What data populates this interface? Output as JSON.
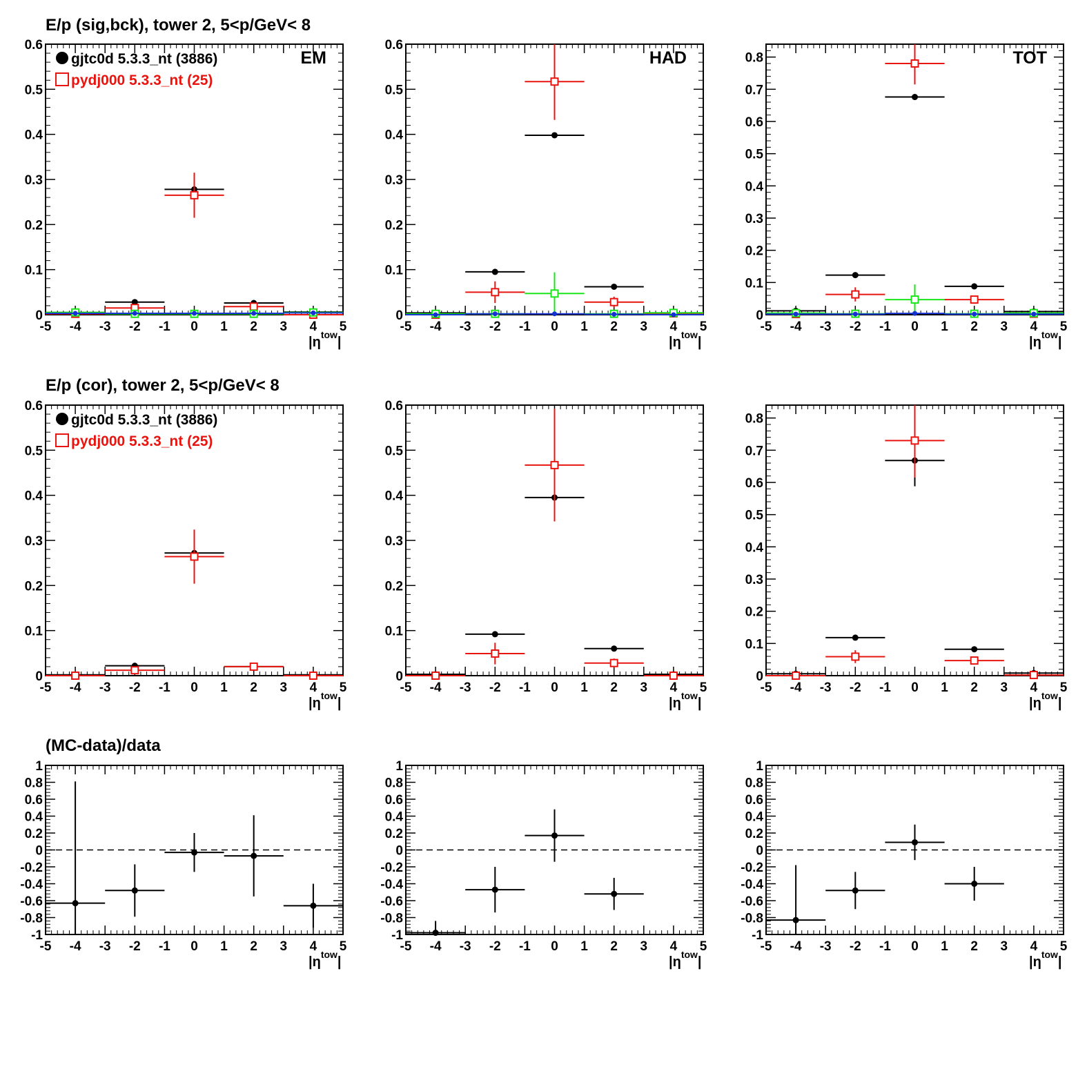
{
  "row_titles": [
    "E/p (sig,bck), tower 2,  5<p/GeV< 8",
    "E/p (cor), tower 2,  5<p/GeV< 8",
    "(MC-data)/data"
  ],
  "legend": {
    "data_label": "gjtc0d 5.3.3_nt (3886)",
    "mc_label": "pydj000 5.3.3_nt (25)"
  },
  "colors": {
    "data": "#000000",
    "mc": "#e8140f",
    "green": "#19e619",
    "blue": "#1432d2"
  },
  "xaxis": {
    "title_main": "|η",
    "title_sup": "tow",
    "title_end": "|",
    "ticks": [
      "-5",
      "-4",
      "-3",
      "-2",
      "-1",
      "0",
      "1",
      "2",
      "3",
      "4",
      "5"
    ]
  },
  "chart_data": [
    {
      "type": "scatter",
      "panel_label": "EM",
      "xlim": [
        -5,
        5
      ],
      "ylim": [
        0,
        0.6
      ],
      "yticks": [
        0,
        0.1,
        0.2,
        0.3,
        0.4,
        0.5,
        0.6
      ],
      "ytick_labels": [
        "0",
        "0.1",
        "0.2",
        "0.3",
        "0.4",
        "0.5",
        "0.6"
      ],
      "legend": true,
      "series": [
        {
          "name": "gjtc0d 5.3.3_nt (3886)",
          "color": "data",
          "marker": "dot",
          "x": [
            -4,
            -2,
            0,
            2,
            4
          ],
          "y": [
            0.005,
            0.028,
            0.278,
            0.026,
            0.006
          ],
          "yerr": [
            0,
            0,
            0,
            0,
            0
          ]
        },
        {
          "name": "pydj000 5.3.3_nt (25)",
          "color": "mc",
          "marker": "square",
          "x": [
            -4,
            -2,
            0,
            2,
            4
          ],
          "y": [
            0.002,
            0.015,
            0.265,
            0.018,
            0.0
          ],
          "yerr": [
            0,
            0.005,
            0.05,
            0.004,
            0
          ]
        },
        {
          "color": "green",
          "marker": "square",
          "x": [
            -4,
            -2,
            0,
            2,
            4
          ],
          "y": [
            0.005,
            0.002,
            0.002,
            0.002,
            0.005
          ],
          "yerr": [
            0,
            0,
            0,
            0,
            0
          ]
        },
        {
          "color": "blue",
          "marker": "dot",
          "x": [
            -4,
            -2,
            0,
            2,
            4
          ],
          "y": [
            0.003,
            0.003,
            0.003,
            0.003,
            0.004
          ],
          "yerr": [
            0,
            0,
            0,
            0,
            0
          ]
        }
      ]
    },
    {
      "type": "scatter",
      "panel_label": "HAD",
      "xlim": [
        -5,
        5
      ],
      "ylim": [
        0,
        0.6
      ],
      "yticks": [
        0,
        0.1,
        0.2,
        0.3,
        0.4,
        0.5,
        0.6
      ],
      "ytick_labels": [
        "0",
        "0.1",
        "0.2",
        "0.3",
        "0.4",
        "0.5",
        "0.6"
      ],
      "series": [
        {
          "color": "data",
          "marker": "dot",
          "x": [
            -4,
            -2,
            0,
            2,
            4
          ],
          "y": [
            0.004,
            0.095,
            0.398,
            0.062,
            0.004
          ],
          "yerr": [
            0,
            0,
            0,
            0,
            0
          ]
        },
        {
          "color": "mc",
          "marker": "square",
          "x": [
            -4,
            -2,
            0,
            2,
            4
          ],
          "y": [
            0.0,
            0.05,
            0.517,
            0.028,
            0.003
          ],
          "yerr": [
            0,
            0.024,
            0.085,
            0.012,
            0
          ]
        },
        {
          "color": "green",
          "marker": "square",
          "x": [
            -4,
            -2,
            0,
            2,
            4
          ],
          "y": [
            0.002,
            0.002,
            0.047,
            0.002,
            0.004
          ],
          "yerr": [
            0,
            0,
            0.047,
            0,
            0
          ]
        },
        {
          "color": "blue",
          "marker": "dot",
          "x": [
            -4,
            -2,
            0,
            2,
            4
          ],
          "y": [
            0.0,
            0.002,
            0.002,
            0.001,
            0.0
          ],
          "yerr": [
            0,
            0,
            0,
            0,
            0
          ]
        }
      ]
    },
    {
      "type": "scatter",
      "panel_label": "TOT",
      "xlim": [
        -5,
        5
      ],
      "ylim": [
        0,
        0.84
      ],
      "yticks": [
        0,
        0.1,
        0.2,
        0.3,
        0.4,
        0.5,
        0.6,
        0.7,
        0.8
      ],
      "ytick_labels": [
        "0",
        "0.1",
        "0.2",
        "0.3",
        "0.4",
        "0.5",
        "0.6",
        "0.7",
        "0.8"
      ],
      "series": [
        {
          "color": "data",
          "marker": "dot",
          "x": [
            -4,
            -2,
            0,
            2,
            4
          ],
          "y": [
            0.012,
            0.123,
            0.676,
            0.088,
            0.01
          ],
          "yerr": [
            0,
            0,
            0,
            0,
            0
          ]
        },
        {
          "color": "mc",
          "marker": "square",
          "x": [
            -4,
            -2,
            0,
            2,
            4
          ],
          "y": [
            0.002,
            0.063,
            0.78,
            0.047,
            0.003
          ],
          "yerr": [
            0,
            0.022,
            0.065,
            0.01,
            0
          ]
        },
        {
          "color": "green",
          "marker": "square",
          "x": [
            -4,
            -2,
            0,
            2,
            4
          ],
          "y": [
            0.005,
            0.003,
            0.047,
            0.003,
            0.005
          ],
          "yerr": [
            0,
            0,
            0.047,
            0,
            0
          ]
        },
        {
          "color": "blue",
          "marker": "dot",
          "x": [
            -4,
            -2,
            0,
            2,
            4
          ],
          "y": [
            0.002,
            0.002,
            0.004,
            0.002,
            0.002
          ],
          "yerr": [
            0,
            0,
            0,
            0,
            0
          ]
        }
      ]
    },
    {
      "type": "scatter",
      "xlim": [
        -5,
        5
      ],
      "ylim": [
        0,
        0.6
      ],
      "yticks": [
        0,
        0.1,
        0.2,
        0.3,
        0.4,
        0.5,
        0.6
      ],
      "ytick_labels": [
        "0",
        "0.1",
        "0.2",
        "0.3",
        "0.4",
        "0.5",
        "0.6"
      ],
      "legend": true,
      "series": [
        {
          "name": "gjtc0d 5.3.3_nt (3886)",
          "color": "data",
          "marker": "dot",
          "x": [
            -4,
            -2,
            0,
            2,
            4
          ],
          "y": [
            0.002,
            0.022,
            0.272,
            0.02,
            0.002
          ],
          "yerr": [
            0,
            0,
            0,
            0,
            0
          ]
        },
        {
          "name": "pydj000 5.3.3_nt (25)",
          "color": "mc",
          "marker": "square",
          "x": [
            -4,
            -2,
            0,
            2,
            4
          ],
          "y": [
            0.0,
            0.012,
            0.264,
            0.02,
            0.0
          ],
          "yerr": [
            0,
            0.005,
            0.06,
            0.004,
            0
          ]
        }
      ]
    },
    {
      "type": "scatter",
      "xlim": [
        -5,
        5
      ],
      "ylim": [
        0,
        0.6
      ],
      "yticks": [
        0,
        0.1,
        0.2,
        0.3,
        0.4,
        0.5,
        0.6
      ],
      "ytick_labels": [
        "0",
        "0.1",
        "0.2",
        "0.3",
        "0.4",
        "0.5",
        "0.6"
      ],
      "series": [
        {
          "color": "data",
          "marker": "dot",
          "x": [
            -4,
            -2,
            0,
            2,
            4
          ],
          "y": [
            0.003,
            0.092,
            0.395,
            0.06,
            0.003
          ],
          "yerr": [
            0,
            0,
            0.05,
            0,
            0
          ]
        },
        {
          "color": "mc",
          "marker": "square",
          "x": [
            -4,
            -2,
            0,
            2,
            4
          ],
          "y": [
            0.0,
            0.049,
            0.467,
            0.028,
            0.0
          ],
          "yerr": [
            0,
            0.024,
            0.125,
            0.01,
            0
          ]
        }
      ]
    },
    {
      "type": "scatter",
      "xlim": [
        -5,
        5
      ],
      "ylim": [
        0,
        0.84
      ],
      "yticks": [
        0,
        0.1,
        0.2,
        0.3,
        0.4,
        0.5,
        0.6,
        0.7,
        0.8
      ],
      "ytick_labels": [
        "0",
        "0.1",
        "0.2",
        "0.3",
        "0.4",
        "0.5",
        "0.6",
        "0.7",
        "0.8"
      ],
      "series": [
        {
          "color": "data",
          "marker": "dot",
          "x": [
            -4,
            -2,
            0,
            2,
            4
          ],
          "y": [
            0.006,
            0.118,
            0.668,
            0.082,
            0.008
          ],
          "yerr": [
            0,
            0,
            0.08,
            0,
            0
          ]
        },
        {
          "color": "mc",
          "marker": "square",
          "x": [
            -4,
            -2,
            0,
            2,
            4
          ],
          "y": [
            0.0,
            0.059,
            0.73,
            0.047,
            0.002
          ],
          "yerr": [
            0,
            0.02,
            0.115,
            0.01,
            0
          ]
        }
      ]
    },
    {
      "type": "scatter",
      "xlim": [
        -5,
        5
      ],
      "ylim": [
        -1,
        1
      ],
      "zero_line": true,
      "yticks": [
        -1,
        -0.8,
        -0.6,
        -0.4,
        -0.2,
        0,
        0.2,
        0.4,
        0.6,
        0.8,
        1
      ],
      "ytick_labels": [
        "-1",
        "-0.8",
        "-0.6",
        "-0.4",
        "-0.2",
        "0",
        "0.2",
        "0.4",
        "0.6",
        "0.8",
        "1"
      ],
      "series": [
        {
          "color": "data",
          "marker": "dot",
          "x": [
            -4,
            -2,
            0,
            2,
            4
          ],
          "y": [
            -0.63,
            -0.48,
            -0.03,
            -0.07,
            -0.66
          ],
          "yerr": [
            1.44,
            0.31,
            0.23,
            0.48,
            0.26
          ]
        }
      ]
    },
    {
      "type": "scatter",
      "xlim": [
        -5,
        5
      ],
      "ylim": [
        -1,
        1
      ],
      "zero_line": true,
      "yticks": [
        -1,
        -0.8,
        -0.6,
        -0.4,
        -0.2,
        0,
        0.2,
        0.4,
        0.6,
        0.8,
        1
      ],
      "ytick_labels": [
        "-1",
        "-0.8",
        "-0.6",
        "-0.4",
        "-0.2",
        "0",
        "0.2",
        "0.4",
        "0.6",
        "0.8",
        "1"
      ],
      "series": [
        {
          "color": "data",
          "marker": "dot",
          "x": [
            -4,
            -2,
            0,
            2,
            4
          ],
          "y": [
            -0.98,
            -0.47,
            0.17,
            -0.52,
            null
          ],
          "yerr": [
            0.14,
            0.27,
            0.31,
            0.19,
            0
          ]
        }
      ]
    },
    {
      "type": "scatter",
      "xlim": [
        -5,
        5
      ],
      "ylim": [
        -1,
        1
      ],
      "zero_line": true,
      "yticks": [
        -1,
        -0.8,
        -0.6,
        -0.4,
        -0.2,
        0,
        0.2,
        0.4,
        0.6,
        0.8,
        1
      ],
      "ytick_labels": [
        "-1",
        "-0.8",
        "-0.6",
        "-0.4",
        "-0.2",
        "0",
        "0.2",
        "0.4",
        "0.6",
        "0.8",
        "1"
      ],
      "series": [
        {
          "color": "data",
          "marker": "dot",
          "x": [
            -4,
            -2,
            0,
            2,
            4
          ],
          "y": [
            -0.83,
            -0.48,
            0.09,
            -0.4,
            null
          ],
          "yerr": [
            0.65,
            0.22,
            0.21,
            0.2,
            0
          ]
        }
      ]
    }
  ]
}
